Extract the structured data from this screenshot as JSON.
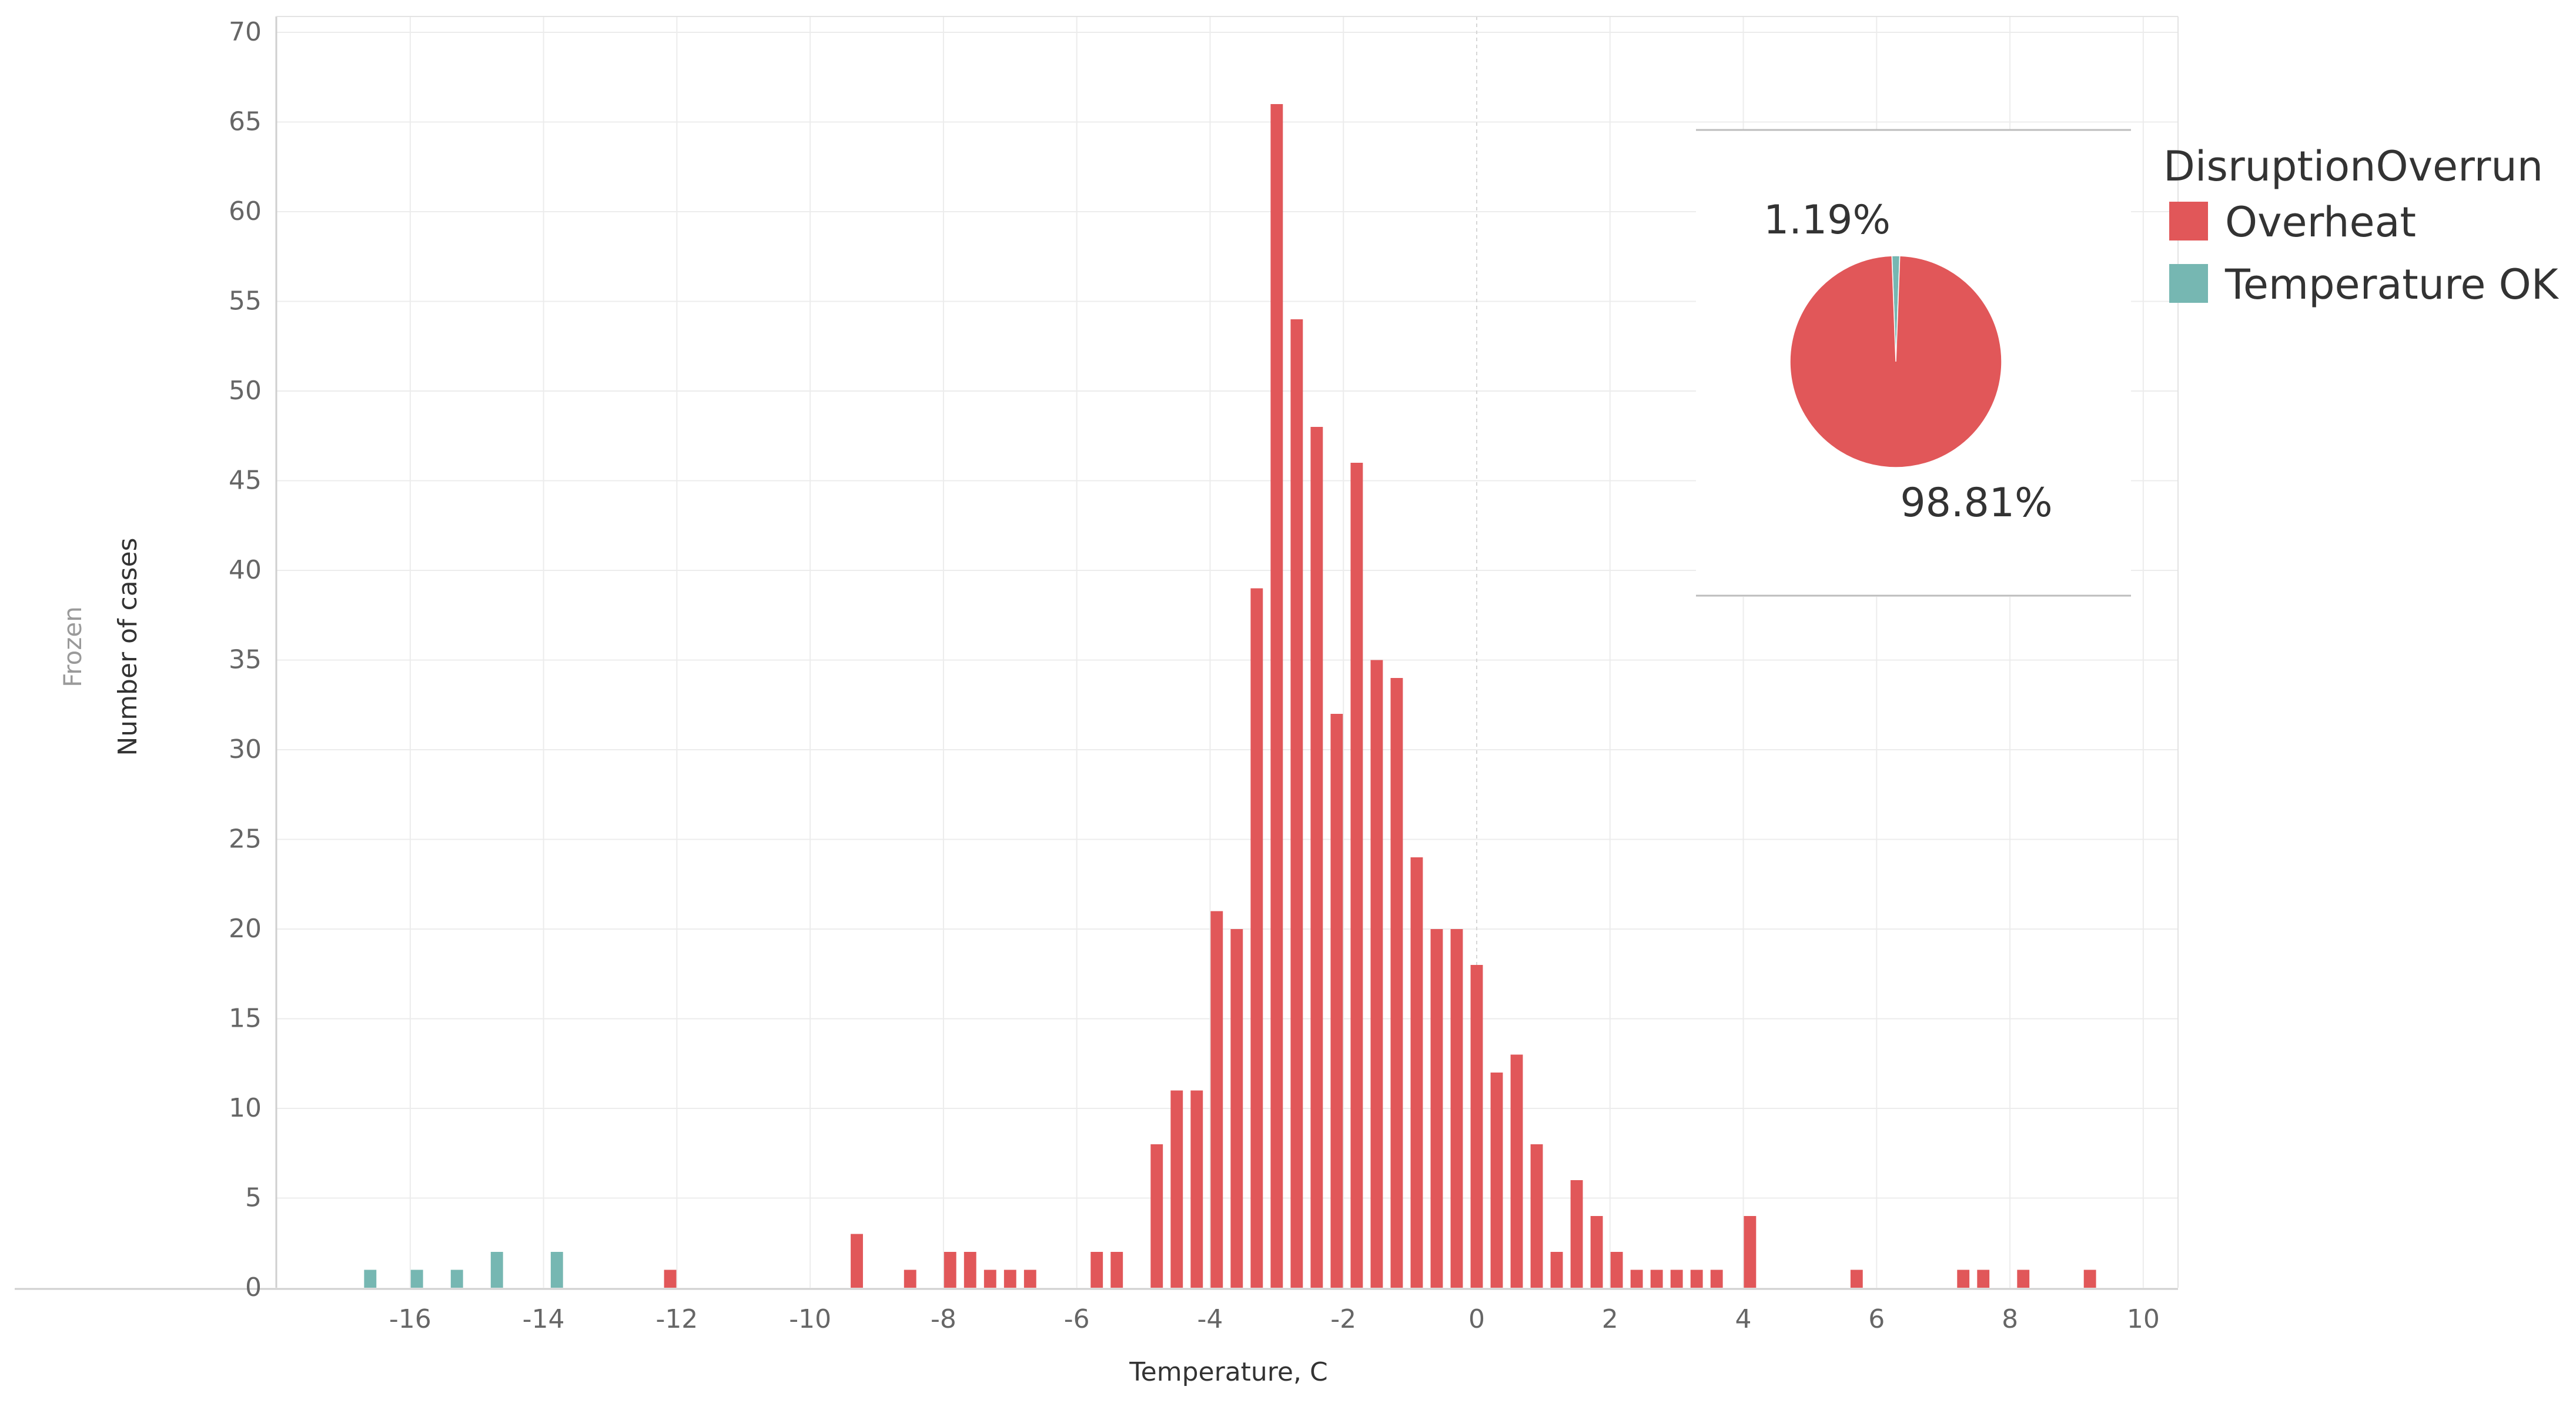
{
  "chart_data": [
    {
      "type": "bar",
      "xlabel": "Temperature, C",
      "ylabel": "Number of cases",
      "ylabel_secondary": "Frozen",
      "xlim": [
        -18,
        10.5
      ],
      "ylim": [
        0,
        70
      ],
      "x_ticks": [
        -16,
        -14,
        -12,
        -10,
        -8,
        -6,
        -4,
        -2,
        0,
        2,
        4,
        6,
        8,
        10
      ],
      "y_ticks": [
        0,
        5,
        10,
        15,
        20,
        25,
        30,
        35,
        40,
        45,
        50,
        55,
        60,
        65,
        70
      ],
      "bin_width": 0.2,
      "grid": true,
      "series": [
        {
          "name": "Overheat",
          "color": "#E15759",
          "x": [
            -12.1,
            -9.3,
            -8.5,
            -7.9,
            -7.6,
            -7.3,
            -7.0,
            -6.7,
            -5.7,
            -5.4,
            -4.8,
            -4.5,
            -4.2,
            -3.9,
            -3.6,
            -3.3,
            -3.0,
            -2.7,
            -2.4,
            -2.1,
            -1.8,
            -1.5,
            -1.2,
            -0.9,
            -0.6,
            -0.3,
            0.0,
            0.3,
            0.6,
            0.9,
            1.2,
            1.5,
            1.8,
            2.1,
            2.4,
            2.7,
            3.0,
            3.3,
            3.6,
            4.1,
            5.7,
            7.3,
            7.6,
            8.2,
            9.2
          ],
          "values": [
            1,
            3,
            1,
            2,
            2,
            1,
            1,
            1,
            2,
            2,
            8,
            11,
            11,
            21,
            20,
            39,
            66,
            54,
            48,
            32,
            46,
            35,
            34,
            24,
            20,
            20,
            18,
            12,
            13,
            8,
            2,
            6,
            4,
            2,
            1,
            1,
            1,
            1,
            1,
            4,
            1,
            1,
            1,
            1,
            1
          ]
        },
        {
          "name": "Temperature OK",
          "color": "#76B7B2",
          "x": [
            -16.6,
            -15.9,
            -15.3,
            -14.7,
            -13.8
          ],
          "values": [
            1,
            1,
            1,
            2,
            2
          ]
        }
      ]
    },
    {
      "type": "pie",
      "legend_title": "DisruptionOverrun",
      "legend_placement": "top-right",
      "slices": [
        {
          "name": "Overheat",
          "value": 98.81,
          "label": "98.81%",
          "color": "#E15759"
        },
        {
          "name": "Temperature OK",
          "value": 1.19,
          "label": "1.19%",
          "color": "#76B7B2"
        }
      ]
    }
  ]
}
